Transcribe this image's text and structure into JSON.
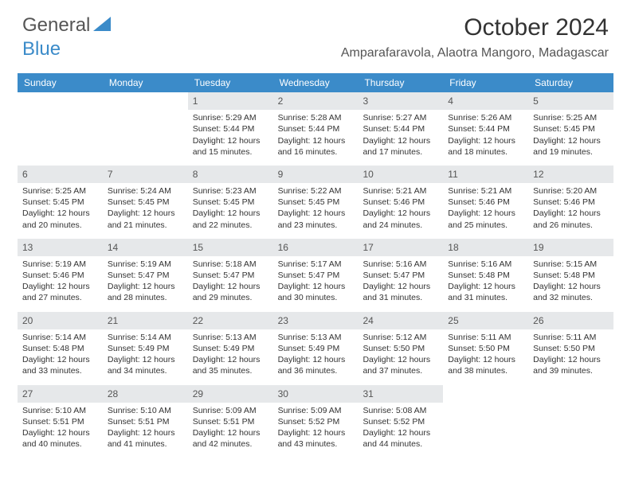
{
  "brand": {
    "part1": "General",
    "part2": "Blue"
  },
  "title": "October 2024",
  "location": "Amparafaravola, Alaotra Mangoro, Madagascar",
  "colors": {
    "header_bg": "#3b8bc9",
    "daynum_bg": "#e6e8ea",
    "text": "#333333",
    "muted": "#555555",
    "white": "#ffffff"
  },
  "fonts": {
    "title_size": 30,
    "location_size": 16,
    "dayhead_size": 12,
    "cell_size": 10.5
  },
  "day_names": [
    "Sunday",
    "Monday",
    "Tuesday",
    "Wednesday",
    "Thursday",
    "Friday",
    "Saturday"
  ],
  "weeks": [
    [
      {
        "blank": true
      },
      {
        "blank": true
      },
      {
        "n": "1",
        "sr": "5:29 AM",
        "ss": "5:44 PM",
        "dl": "12 hours and 15 minutes."
      },
      {
        "n": "2",
        "sr": "5:28 AM",
        "ss": "5:44 PM",
        "dl": "12 hours and 16 minutes."
      },
      {
        "n": "3",
        "sr": "5:27 AM",
        "ss": "5:44 PM",
        "dl": "12 hours and 17 minutes."
      },
      {
        "n": "4",
        "sr": "5:26 AM",
        "ss": "5:44 PM",
        "dl": "12 hours and 18 minutes."
      },
      {
        "n": "5",
        "sr": "5:25 AM",
        "ss": "5:45 PM",
        "dl": "12 hours and 19 minutes."
      }
    ],
    [
      {
        "n": "6",
        "sr": "5:25 AM",
        "ss": "5:45 PM",
        "dl": "12 hours and 20 minutes."
      },
      {
        "n": "7",
        "sr": "5:24 AM",
        "ss": "5:45 PM",
        "dl": "12 hours and 21 minutes."
      },
      {
        "n": "8",
        "sr": "5:23 AM",
        "ss": "5:45 PM",
        "dl": "12 hours and 22 minutes."
      },
      {
        "n": "9",
        "sr": "5:22 AM",
        "ss": "5:45 PM",
        "dl": "12 hours and 23 minutes."
      },
      {
        "n": "10",
        "sr": "5:21 AM",
        "ss": "5:46 PM",
        "dl": "12 hours and 24 minutes."
      },
      {
        "n": "11",
        "sr": "5:21 AM",
        "ss": "5:46 PM",
        "dl": "12 hours and 25 minutes."
      },
      {
        "n": "12",
        "sr": "5:20 AM",
        "ss": "5:46 PM",
        "dl": "12 hours and 26 minutes."
      }
    ],
    [
      {
        "n": "13",
        "sr": "5:19 AM",
        "ss": "5:46 PM",
        "dl": "12 hours and 27 minutes."
      },
      {
        "n": "14",
        "sr": "5:19 AM",
        "ss": "5:47 PM",
        "dl": "12 hours and 28 minutes."
      },
      {
        "n": "15",
        "sr": "5:18 AM",
        "ss": "5:47 PM",
        "dl": "12 hours and 29 minutes."
      },
      {
        "n": "16",
        "sr": "5:17 AM",
        "ss": "5:47 PM",
        "dl": "12 hours and 30 minutes."
      },
      {
        "n": "17",
        "sr": "5:16 AM",
        "ss": "5:47 PM",
        "dl": "12 hours and 31 minutes."
      },
      {
        "n": "18",
        "sr": "5:16 AM",
        "ss": "5:48 PM",
        "dl": "12 hours and 31 minutes."
      },
      {
        "n": "19",
        "sr": "5:15 AM",
        "ss": "5:48 PM",
        "dl": "12 hours and 32 minutes."
      }
    ],
    [
      {
        "n": "20",
        "sr": "5:14 AM",
        "ss": "5:48 PM",
        "dl": "12 hours and 33 minutes."
      },
      {
        "n": "21",
        "sr": "5:14 AM",
        "ss": "5:49 PM",
        "dl": "12 hours and 34 minutes."
      },
      {
        "n": "22",
        "sr": "5:13 AM",
        "ss": "5:49 PM",
        "dl": "12 hours and 35 minutes."
      },
      {
        "n": "23",
        "sr": "5:13 AM",
        "ss": "5:49 PM",
        "dl": "12 hours and 36 minutes."
      },
      {
        "n": "24",
        "sr": "5:12 AM",
        "ss": "5:50 PM",
        "dl": "12 hours and 37 minutes."
      },
      {
        "n": "25",
        "sr": "5:11 AM",
        "ss": "5:50 PM",
        "dl": "12 hours and 38 minutes."
      },
      {
        "n": "26",
        "sr": "5:11 AM",
        "ss": "5:50 PM",
        "dl": "12 hours and 39 minutes."
      }
    ],
    [
      {
        "n": "27",
        "sr": "5:10 AM",
        "ss": "5:51 PM",
        "dl": "12 hours and 40 minutes."
      },
      {
        "n": "28",
        "sr": "5:10 AM",
        "ss": "5:51 PM",
        "dl": "12 hours and 41 minutes."
      },
      {
        "n": "29",
        "sr": "5:09 AM",
        "ss": "5:51 PM",
        "dl": "12 hours and 42 minutes."
      },
      {
        "n": "30",
        "sr": "5:09 AM",
        "ss": "5:52 PM",
        "dl": "12 hours and 43 minutes."
      },
      {
        "n": "31",
        "sr": "5:08 AM",
        "ss": "5:52 PM",
        "dl": "12 hours and 44 minutes."
      },
      {
        "blank": true
      },
      {
        "blank": true
      }
    ]
  ],
  "labels": {
    "sunrise": "Sunrise:",
    "sunset": "Sunset:",
    "daylight": "Daylight:"
  }
}
